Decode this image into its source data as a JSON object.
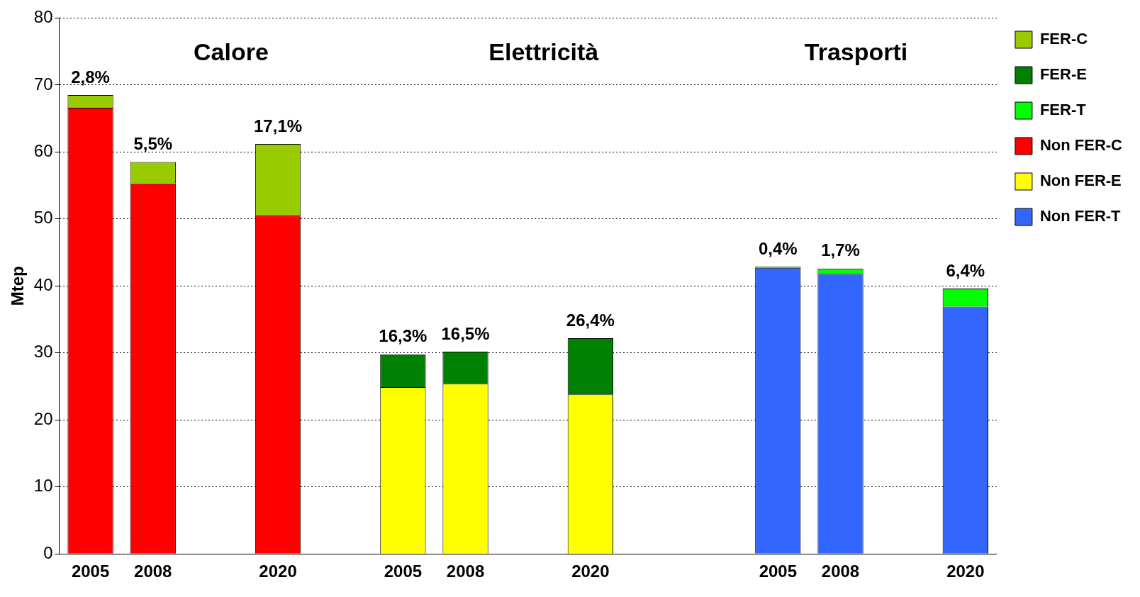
{
  "chart_data": {
    "type": "bar",
    "stacked": true,
    "ylabel": "Mtep",
    "ylim": [
      0,
      80
    ],
    "yticks": [
      0,
      10,
      20,
      30,
      40,
      50,
      60,
      70,
      80
    ],
    "grid": "y",
    "legend": "right",
    "categories": [
      "2005",
      "2008",
      null,
      "2020",
      null,
      "2005",
      "2008",
      null,
      "2020",
      null,
      null,
      "2005",
      "2008",
      null,
      "2020"
    ],
    "annotations": [
      "Calore",
      "Elettricità",
      "Trasporti",
      "2,8%",
      "5,5%",
      "17,1%",
      "16,3%",
      "16,5%",
      "26,4%",
      "0,4%",
      "1,7%",
      "6,4%"
    ],
    "series": [
      {
        "name": "Non FER-C",
        "color": "#ff0000",
        "values": [
          66.6,
          55.3,
          null,
          50.6,
          null,
          null,
          null,
          null,
          null,
          null,
          null,
          null,
          null,
          null,
          null
        ]
      },
      {
        "name": "FER-C",
        "color": "#99cc00",
        "values": [
          1.9,
          3.2,
          null,
          10.6,
          null,
          null,
          null,
          null,
          null,
          null,
          null,
          null,
          null,
          null,
          null
        ]
      },
      {
        "name": "Non FER-E",
        "color": "#ffff00",
        "values": [
          null,
          null,
          null,
          null,
          null,
          24.9,
          25.4,
          null,
          23.8,
          null,
          null,
          null,
          null,
          null,
          null
        ]
      },
      {
        "name": "FER-E",
        "color": "#008000",
        "values": [
          null,
          null,
          null,
          null,
          null,
          4.9,
          4.8,
          null,
          8.4,
          null,
          null,
          null,
          null,
          null,
          null
        ]
      },
      {
        "name": "Non FER-T",
        "color": "#3366ff",
        "values": [
          null,
          null,
          null,
          null,
          null,
          null,
          null,
          null,
          null,
          null,
          null,
          42.7,
          41.8,
          null,
          36.9
        ]
      },
      {
        "name": "FER-T",
        "color": "#00ff00",
        "values": [
          null,
          null,
          null,
          null,
          null,
          null,
          null,
          null,
          null,
          null,
          null,
          0.2,
          0.8,
          null,
          2.7
        ]
      }
    ]
  }
}
